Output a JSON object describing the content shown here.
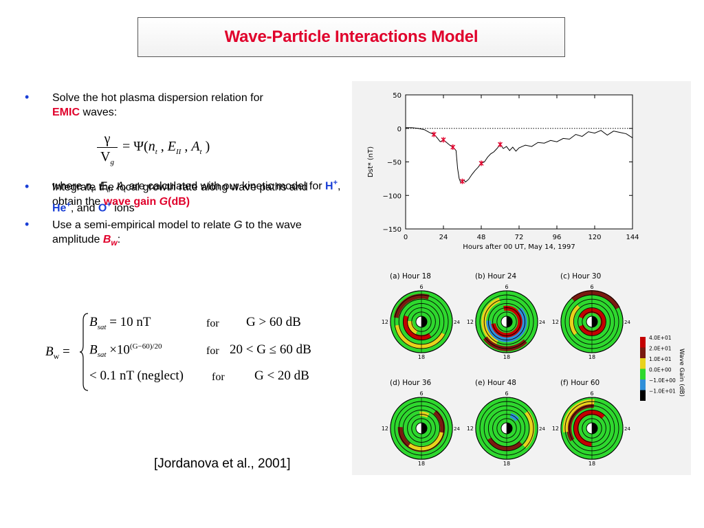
{
  "slide": {
    "title": "Wave-Particle Interactions Model",
    "citation": "[Jordanova et al., 2001]"
  },
  "bullets": [
    {
      "pre": "Solve the hot plasma dispersion relation for",
      "emph": "EMIC",
      "post": " waves:"
    },
    {
      "pre": "Integrate the local growth rate along wave paths and obtain the ",
      "emph": "wave gain ",
      "emph_var": "G",
      "emph_post": "(dB)"
    },
    {
      "pre": "Use a semi-empirical model to relate ",
      "var": "G",
      "mid": " to the wave amplitude  ",
      "emph": "B",
      "emph_sub": "w",
      "post": ":"
    }
  ],
  "where_text": {
    "p1": "where ",
    "n": "n",
    "n_sub": "t",
    "c1": ", ",
    "e": "E",
    "e_sub": "ll",
    "c2": ", ",
    "a": "A",
    "a_sub": "t",
    "p2": " are calculated with our kinetic model for ",
    "h": "H",
    "h_sup": "+",
    "c3": ", ",
    "he": "He",
    "he_sup": "+",
    "c4": ", and ",
    "o": "O",
    "o_sup": "+",
    "p3": " ions"
  },
  "equation1": {
    "num": "γ",
    "den": "V",
    "den_sub": "g",
    "rhs": "= Ψ(",
    "n": "n",
    "n_sub": "t",
    "c1": " , ",
    "e": "E",
    "e_sub": "II",
    "c2": " , ",
    "a": "A",
    "a_sub": "t",
    "close": " )"
  },
  "equation2": {
    "lhs": "B",
    "lhs_sub": "w",
    "eq": " =",
    "rows": [
      {
        "b": "B",
        "b_sub": "sat",
        "expr": " = 10 nT",
        "for": "for",
        "cond": "G > 60 dB"
      },
      {
        "b": "B",
        "b_sub": "sat",
        "expr": " ×10",
        "sup": "(G−60)/20",
        "for": "for",
        "cond": "20 < G ≤ 60 dB"
      },
      {
        "b": "",
        "b_sub": "",
        "expr": "< 0.1 nT (neglect)",
        "for": "for",
        "cond": "G < 20 dB"
      }
    ]
  },
  "chart_data": [
    {
      "type": "line",
      "title": "",
      "xlabel": "Hours after 00 UT, May 14, 1997",
      "ylabel": "Dst* (nT)",
      "xlim": [
        0,
        144
      ],
      "ylim": [
        -150,
        50
      ],
      "xticks": [
        0,
        24,
        48,
        72,
        96,
        120,
        144
      ],
      "yticks": [
        50,
        0,
        -50,
        -100,
        -150
      ],
      "reference_line_y": 0,
      "series": [
        {
          "x": [
            0,
            4,
            8,
            12,
            15,
            18,
            20,
            22,
            24,
            26,
            28,
            30,
            32,
            33,
            34,
            35,
            36,
            37,
            38,
            40,
            42,
            44,
            46,
            48,
            50,
            52,
            54,
            56,
            58,
            60,
            62,
            64,
            66,
            68,
            70,
            72,
            76,
            80,
            84,
            88,
            92,
            96,
            100,
            104,
            108,
            112,
            116,
            120,
            124,
            128,
            132,
            136,
            140,
            144
          ],
          "y": [
            1,
            1,
            0,
            -2,
            -6,
            -9,
            -14,
            -20,
            -17,
            -21,
            -25,
            -28,
            -33,
            -60,
            -75,
            -81,
            -79,
            -77,
            -80,
            -76,
            -69,
            -63,
            -58,
            -52,
            -50,
            -43,
            -38,
            -35,
            -30,
            -24,
            -30,
            -27,
            -33,
            -28,
            -34,
            -29,
            -25,
            -27,
            -21,
            -22,
            -18,
            -20,
            -15,
            -16,
            -9,
            -12,
            -5,
            -7,
            -3,
            -10,
            -4,
            -6,
            -8,
            -14
          ]
        }
      ],
      "markers_x": [
        18,
        24,
        30,
        36,
        48,
        60
      ],
      "markers_y": [
        -9,
        -17,
        -28,
        -79,
        -52,
        -24
      ],
      "marker_color": "#e0002b"
    },
    {
      "type": "heatmap",
      "panels": [
        {
          "label": "(a) Hour  18"
        },
        {
          "label": "(b) Hour  24"
        },
        {
          "label": "(c) Hour  30"
        },
        {
          "label": "(d) Hour  36"
        },
        {
          "label": "(e) Hour  48"
        },
        {
          "label": "(f) Hour  60"
        }
      ],
      "clock_labels": [
        "6",
        "12",
        "18",
        "24"
      ],
      "colorbar_title": "Wave Gain (dB)",
      "colorbar": [
        {
          "label": "4.0E+01",
          "color": "#c40000"
        },
        {
          "label": "2.0E+01",
          "color": "#7a1a10"
        },
        {
          "label": "1.0E+01",
          "color": "#e8d21c"
        },
        {
          "label": "0.0E+00",
          "color": "#2ed82e"
        },
        {
          "label": "−1.0E+00",
          "color": "#2f8fd8"
        },
        {
          "label": "−1.0E+01",
          "color": "#000000"
        }
      ]
    }
  ]
}
